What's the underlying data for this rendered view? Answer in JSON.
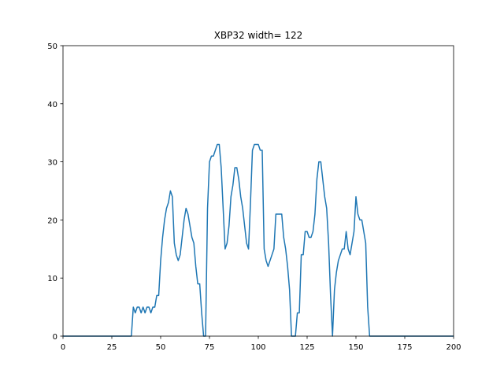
{
  "chart_data": {
    "type": "line",
    "title": "XBP32 width= 122",
    "color": "#1f77b4",
    "x": [
      0,
      35,
      36,
      37,
      38,
      39,
      40,
      41,
      42,
      43,
      44,
      45,
      46,
      47,
      48,
      49,
      50,
      51,
      52,
      53,
      54,
      55,
      56,
      57,
      58,
      59,
      60,
      61,
      62,
      63,
      64,
      65,
      66,
      67,
      68,
      69,
      70,
      71,
      72,
      73,
      74,
      75,
      76,
      77,
      78,
      79,
      80,
      81,
      82,
      83,
      84,
      85,
      86,
      87,
      88,
      89,
      90,
      91,
      92,
      93,
      94,
      95,
      96,
      97,
      98,
      99,
      100,
      101,
      102,
      103,
      104,
      105,
      106,
      107,
      108,
      109,
      110,
      111,
      112,
      113,
      114,
      115,
      116,
      117,
      118,
      119,
      120,
      121,
      122,
      123,
      124,
      125,
      126,
      127,
      128,
      129,
      130,
      131,
      132,
      133,
      134,
      135,
      136,
      137,
      138,
      139,
      140,
      141,
      142,
      143,
      144,
      145,
      146,
      147,
      148,
      149,
      150,
      151,
      152,
      153,
      154,
      155,
      156,
      157,
      200
    ],
    "values": [
      0,
      0,
      5,
      4,
      5,
      5,
      4,
      5,
      4,
      5,
      5,
      4,
      5,
      5,
      7,
      7,
      13,
      17,
      20,
      22,
      23,
      25,
      24,
      16,
      14,
      13,
      14,
      17,
      20,
      22,
      21,
      19,
      17,
      16,
      12,
      9,
      9,
      4,
      0,
      0,
      22,
      30,
      31,
      31,
      32,
      33,
      33,
      29,
      22,
      15,
      16,
      19,
      24,
      26,
      29,
      29,
      27,
      24,
      22,
      19,
      16,
      15,
      23,
      32,
      33,
      33,
      33,
      32,
      32,
      15,
      13,
      12,
      13,
      14,
      15,
      21,
      21,
      21,
      21,
      17,
      15,
      12,
      8,
      0,
      0,
      0,
      4,
      4,
      14,
      14,
      18,
      18,
      17,
      17,
      18,
      21,
      27,
      30,
      30,
      27,
      24,
      22,
      16,
      7,
      0,
      8,
      11,
      13,
      14,
      15,
      15,
      18,
      15,
      14,
      16,
      18,
      24,
      21,
      20,
      20,
      18,
      16,
      5,
      0,
      0
    ],
    "xlim": [
      0,
      200
    ],
    "ylim": [
      0,
      50
    ],
    "xticks": [
      0,
      25,
      50,
      75,
      100,
      125,
      150,
      175,
      200
    ],
    "yticks": [
      0,
      10,
      20,
      30,
      40,
      50
    ]
  }
}
